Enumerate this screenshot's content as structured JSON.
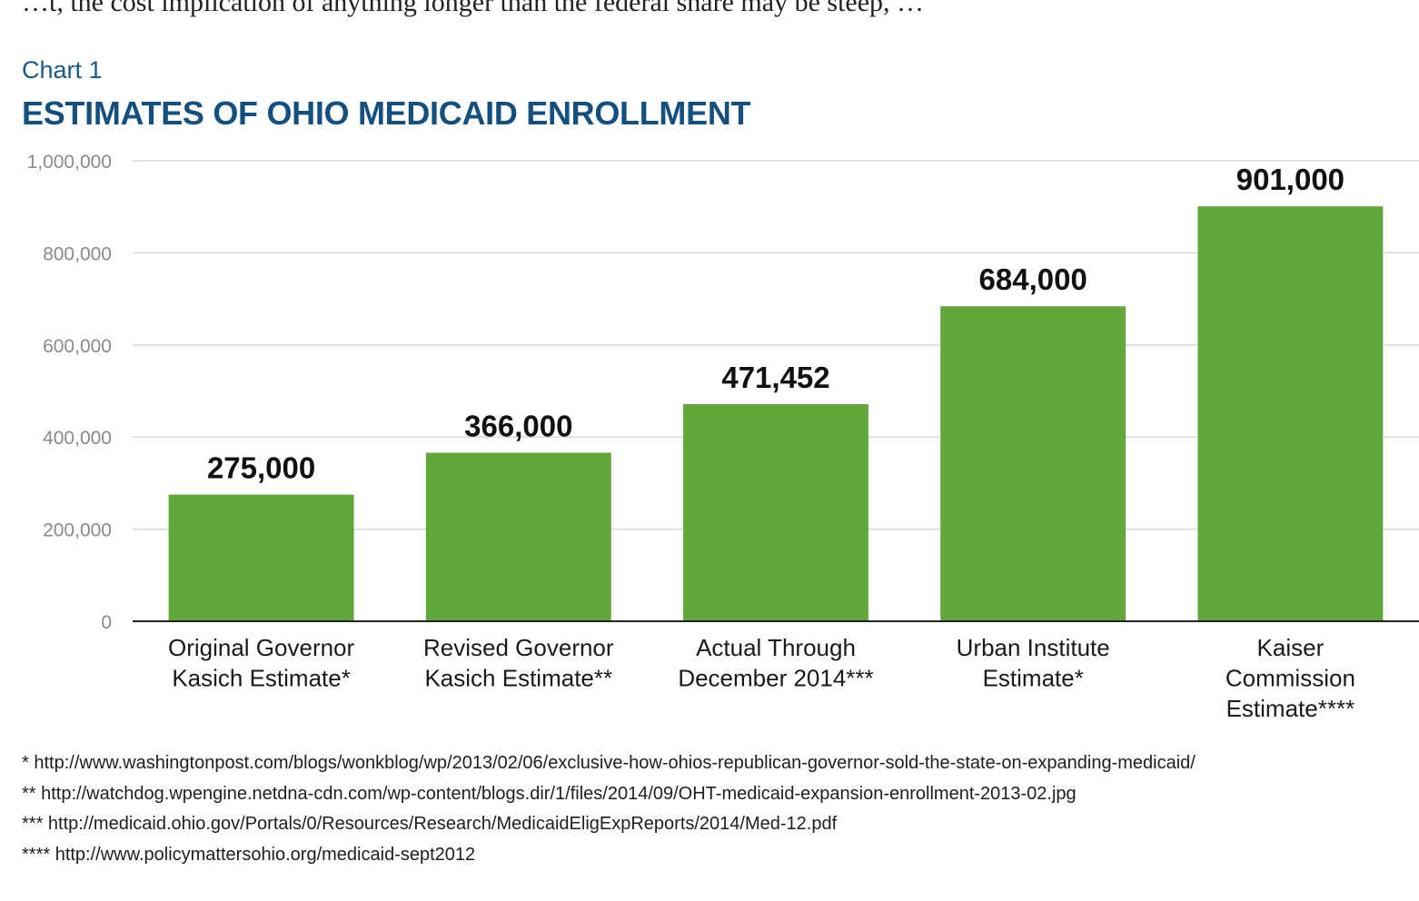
{
  "page": {
    "top_text": "…t, the cost implication of anything longer than the federal share may be steep, …"
  },
  "chart_data": {
    "type": "bar",
    "label": "Chart 1",
    "title": "ESTIMATES OF OHIO MEDICAID ENROLLMENT",
    "xlabel": "",
    "ylabel": "",
    "ylim": [
      0,
      1000000
    ],
    "yticks": [
      0,
      200000,
      400000,
      600000,
      800000,
      1000000
    ],
    "ytick_labels": [
      "0",
      "200,000",
      "400,000",
      "600,000",
      "800,000",
      "1,000,000"
    ],
    "grid": true,
    "categories": [
      [
        "Original Governor",
        "Kasich Estimate*"
      ],
      [
        "Revised Governor",
        "Kasich Estimate**"
      ],
      [
        "Actual Through",
        "December 2014***"
      ],
      [
        "Urban Institute",
        "Estimate*"
      ],
      [
        "Kaiser",
        "Commission",
        "Estimate****"
      ]
    ],
    "values": [
      275000,
      366000,
      471452,
      684000,
      901000
    ],
    "value_labels": [
      "275,000",
      "366,000",
      "471,452",
      "684,000",
      "901,000"
    ],
    "bar_color": "#62a73b",
    "grid_color": "#d9d9d9",
    "axis_color": "#222222"
  },
  "footnotes": [
    "* http://www.washingtonpost.com/blogs/wonkblog/wp/2013/02/06/exclusive-how-ohios-republican-governor-sold-the-state-on-expanding-medicaid/",
    "** http://watchdog.wpengine.netdna-cdn.com/wp-content/blogs.dir/1/files/2014/09/OHT-medicaid-expansion-enrollment-2013-02.jpg",
    "*** http://medicaid.ohio.gov/Portals/0/Resources/Research/MedicaidEligExpReports/2014/Med-12.pdf",
    "**** http://www.policymattersohio.org/medicaid-sept2012"
  ]
}
